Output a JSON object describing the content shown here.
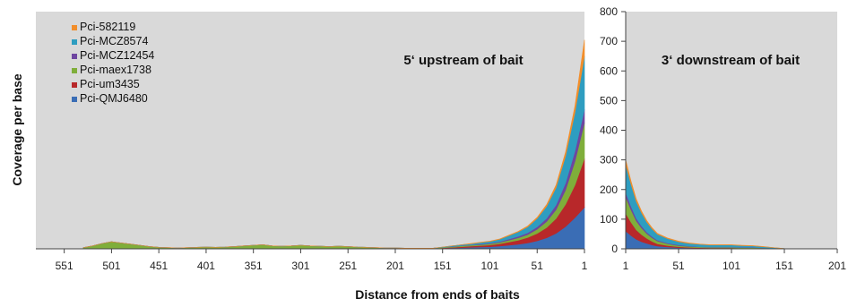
{
  "chart_data": {
    "type": "area",
    "stacked": true,
    "xlabel": "Distance from ends of baits",
    "ylabel": "Coverage per base",
    "ylim": [
      0,
      800
    ],
    "yticks": [
      0,
      100,
      200,
      300,
      400,
      500,
      600,
      700,
      800
    ],
    "grid": false,
    "legend_position": "top-left",
    "series_order_bottom_to_top": [
      "Pci-QMJ6480",
      "Pci-um3435",
      "Pci-maex1738",
      "Pci-MCZ12454",
      "Pci-MCZ8574",
      "Pci-582119"
    ],
    "legend": [
      {
        "name": "Pci-582119",
        "color": "#F28E2B"
      },
      {
        "name": "Pci-MCZ8574",
        "color": "#2E9DC0"
      },
      {
        "name": "Pci-MCZ12454",
        "color": "#6E46A0"
      },
      {
        "name": "Pci-maex1738",
        "color": "#7FAE3A"
      },
      {
        "name": "Pci-um3435",
        "color": "#B8282A"
      },
      {
        "name": "Pci-QMJ6480",
        "color": "#3A6DB5"
      }
    ],
    "panels": [
      {
        "label": "5‘ upstream of bait",
        "xlim": [
          581,
          1
        ],
        "x_reversed": true,
        "xticks": [
          551,
          501,
          451,
          401,
          351,
          301,
          251,
          201,
          151,
          101,
          51,
          1
        ],
        "x": [
          531,
          521,
          511,
          501,
          491,
          481,
          471,
          461,
          451,
          441,
          431,
          421,
          411,
          401,
          391,
          381,
          371,
          361,
          351,
          341,
          331,
          321,
          311,
          301,
          291,
          281,
          271,
          261,
          251,
          241,
          231,
          221,
          211,
          201,
          191,
          181,
          171,
          161,
          151,
          141,
          131,
          121,
          111,
          101,
          91,
          81,
          71,
          61,
          51,
          41,
          31,
          21,
          11,
          1
        ],
        "series": [
          {
            "name": "Pci-QMJ6480",
            "values": [
              0,
              0,
              0,
              0,
              0,
              0,
              0,
              0,
              0,
              0,
              0,
              0,
              0,
              0,
              0,
              0,
              0,
              0,
              0,
              0,
              0,
              0,
              0,
              0,
              0,
              0,
              0,
              0,
              0,
              0,
              0,
              0,
              0,
              0,
              0,
              0,
              0,
              0,
              2,
              3,
              4,
              5,
              6,
              7,
              9,
              12,
              15,
              20,
              27,
              37,
              52,
              75,
              105,
              140
            ]
          },
          {
            "name": "Pci-um3435",
            "values": [
              0,
              0,
              0,
              0,
              0,
              0,
              0,
              0,
              0,
              0,
              0,
              0,
              0,
              0,
              0,
              0,
              0,
              0,
              0,
              0,
              0,
              0,
              0,
              0,
              0,
              0,
              0,
              0,
              0,
              0,
              0,
              0,
              0,
              0,
              0,
              0,
              0,
              0,
              1,
              2,
              3,
              4,
              5,
              6,
              8,
              11,
              14,
              18,
              25,
              35,
              50,
              75,
              110,
              165
            ]
          },
          {
            "name": "Pci-maex1738",
            "values": [
              4,
              10,
              18,
              24,
              20,
              16,
              12,
              8,
              5,
              4,
              3,
              4,
              5,
              6,
              5,
              6,
              8,
              10,
              12,
              14,
              10,
              9,
              10,
              12,
              10,
              9,
              8,
              9,
              8,
              6,
              5,
              4,
              3,
              3,
              2,
              2,
              2,
              2,
              2,
              2,
              3,
              3,
              3,
              4,
              4,
              6,
              8,
              10,
              14,
              20,
              30,
              48,
              80,
              120
            ]
          },
          {
            "name": "Pci-MCZ12454",
            "values": [
              0,
              0,
              0,
              0,
              0,
              0,
              0,
              0,
              0,
              0,
              0,
              0,
              0,
              0,
              0,
              0,
              0,
              0,
              0,
              0,
              0,
              0,
              0,
              0,
              0,
              0,
              0,
              0,
              0,
              0,
              0,
              0,
              0,
              0,
              0,
              0,
              0,
              0,
              0,
              1,
              1,
              1,
              2,
              2,
              3,
              4,
              5,
              6,
              8,
              11,
              16,
              24,
              35,
              45
            ]
          },
          {
            "name": "Pci-MCZ8574",
            "values": [
              0,
              0,
              0,
              0,
              0,
              0,
              0,
              0,
              0,
              0,
              0,
              0,
              0,
              0,
              0,
              0,
              0,
              0,
              0,
              0,
              0,
              0,
              0,
              0,
              0,
              0,
              0,
              0,
              0,
              0,
              0,
              0,
              0,
              0,
              0,
              0,
              0,
              0,
              1,
              2,
              3,
              4,
              5,
              6,
              8,
              11,
              15,
              20,
              28,
              40,
              58,
              90,
              130,
              180
            ]
          },
          {
            "name": "Pci-582119",
            "values": [
              0,
              0,
              0,
              0,
              0,
              0,
              0,
              0,
              0,
              0,
              0,
              0,
              0,
              0,
              0,
              0,
              0,
              0,
              0,
              0,
              0,
              0,
              0,
              0,
              0,
              0,
              0,
              0,
              0,
              0,
              0,
              0,
              0,
              0,
              0,
              0,
              0,
              0,
              0,
              0,
              0,
              1,
              1,
              1,
              1,
              2,
              2,
              3,
              4,
              6,
              9,
              14,
              22,
              55
            ]
          }
        ]
      },
      {
        "label": "3‘ downstream of bait",
        "xlim": [
          1,
          201
        ],
        "x_reversed": false,
        "xticks": [
          1,
          51,
          101,
          151,
          201
        ],
        "x": [
          1,
          6,
          11,
          16,
          21,
          26,
          31,
          41,
          51,
          61,
          71,
          81,
          91,
          101,
          111,
          121,
          131,
          141,
          151,
          161
        ],
        "series": [
          {
            "name": "Pci-QMJ6480",
            "values": [
              60,
              45,
              32,
              24,
              18,
              13,
              9,
              6,
              4,
              3,
              2,
              2,
              2,
              2,
              1,
              1,
              1,
              1,
              0,
              0
            ]
          },
          {
            "name": "Pci-um3435",
            "values": [
              60,
              45,
              32,
              24,
              17,
              12,
              8,
              5,
              3,
              2,
              2,
              1,
              1,
              1,
              1,
              1,
              1,
              0,
              0,
              0
            ]
          },
          {
            "name": "Pci-maex1738",
            "values": [
              55,
              42,
              30,
              22,
              16,
              12,
              9,
              6,
              4,
              3,
              2,
              2,
              2,
              2,
              2,
              2,
              1,
              1,
              0,
              0
            ]
          },
          {
            "name": "Pci-MCZ12454",
            "values": [
              15,
              12,
              9,
              7,
              5,
              4,
              3,
              2,
              2,
              1,
              1,
              1,
              1,
              1,
              1,
              1,
              0,
              0,
              0,
              0
            ]
          },
          {
            "name": "Pci-MCZ8574",
            "values": [
              95,
              75,
              57,
              44,
              34,
              26,
              20,
              15,
              11,
              9,
              8,
              7,
              7,
              7,
              6,
              5,
              4,
              2,
              1,
              0
            ]
          },
          {
            "name": "Pci-582119",
            "values": [
              15,
              10,
              8,
              6,
              5,
              4,
              3,
              2,
              2,
              2,
              1,
              1,
              1,
              1,
              1,
              1,
              1,
              0,
              0,
              0
            ]
          }
        ]
      }
    ]
  }
}
